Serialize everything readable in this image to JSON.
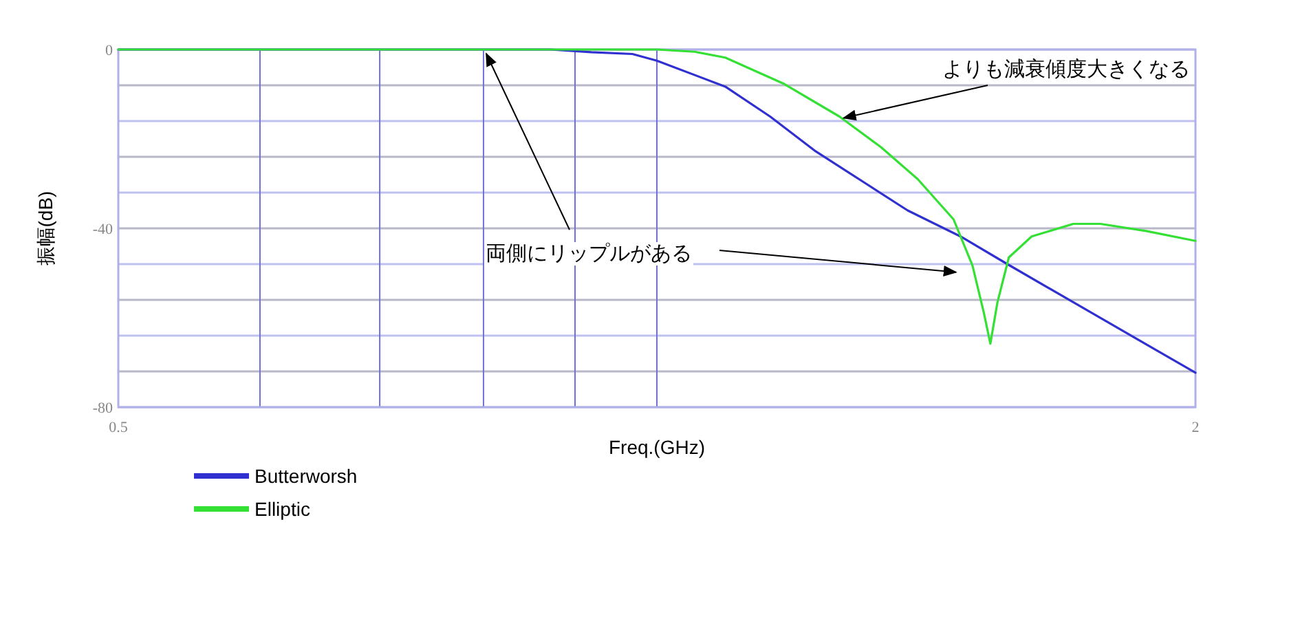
{
  "chart_data": {
    "type": "line",
    "xlabel": "Freq.(GHz)",
    "ylabel": "振幅(dB)",
    "log": "x",
    "grid": true,
    "legend": "bottom",
    "xlim": [
      0.5,
      2
    ],
    "ylim": [
      -80,
      0
    ],
    "xticks": [
      {
        "value": 0.5,
        "label": "0.5"
      },
      {
        "value": 0.6,
        "label": null
      },
      {
        "value": 0.7,
        "label": null
      },
      {
        "value": 0.8,
        "label": null
      },
      {
        "value": 0.9,
        "label": null
      },
      {
        "value": 1.0,
        "label": null
      },
      {
        "value": 2,
        "label": "2"
      }
    ],
    "yticks": [
      0,
      {
        "value": -8,
        "label": null
      },
      {
        "value": -16,
        "label": null
      },
      {
        "value": -24,
        "label": null
      },
      {
        "value": -32,
        "label": null
      },
      -40,
      {
        "value": -48,
        "label": null
      },
      {
        "value": -56,
        "label": null
      },
      {
        "value": -64,
        "label": null
      },
      {
        "value": -72,
        "label": null
      },
      -80
    ],
    "series": [
      {
        "name": "Butterworsh",
        "color": "#3030d0",
        "x": [
          0.5,
          0.7,
          0.872,
          0.919,
          0.969,
          1.0,
          1.092,
          1.157,
          1.227,
          1.303,
          1.381,
          1.478,
          1.57,
          1.748,
          2.0
        ],
        "values": [
          0,
          0,
          0,
          -0.6,
          -1.0,
          -2.5,
          -8.3,
          -15,
          -22.8,
          -29.5,
          -36,
          -41.8,
          -48,
          -58.8,
          -72.3
        ]
      },
      {
        "name": "Elliptic",
        "color": "#33e033",
        "x": [
          0.5,
          0.7,
          0.9,
          1.0,
          1.05,
          1.092,
          1.178,
          1.265,
          1.334,
          1.399,
          1.465,
          1.501,
          1.523,
          1.536,
          1.55,
          1.573,
          1.62,
          1.709,
          1.77,
          1.877,
          2.0
        ],
        "values": [
          0,
          0,
          0,
          0,
          -0.5,
          -1.8,
          -7.7,
          -15,
          -21.8,
          -29,
          -38,
          -48.3,
          -58.8,
          -65.8,
          -56.6,
          -46.5,
          -41.8,
          -39,
          -39,
          -40.6,
          -42.8
        ]
      }
    ],
    "annotations": [
      {
        "text": "よりも減衰傾度大きくなる",
        "x": 1.265,
        "y": -15
      },
      {
        "text": "両側にリップルがある",
        "x": 0.8,
        "y": 0
      }
    ]
  }
}
